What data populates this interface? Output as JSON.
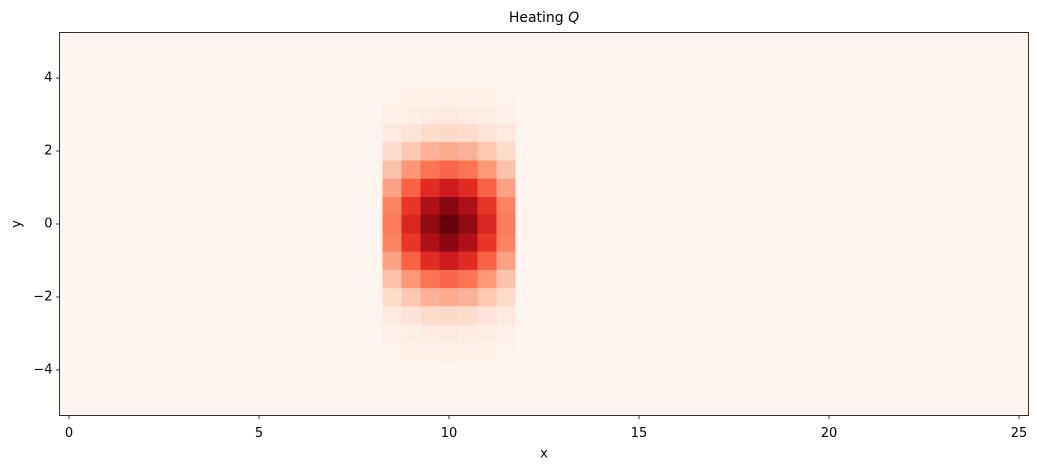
{
  "chart_data": {
    "type": "heatmap",
    "title": "Heating Q",
    "xlabel": "x",
    "ylabel": "y",
    "x": [
      0,
      0.5,
      1,
      1.5,
      2,
      2.5,
      3,
      3.5,
      4,
      4.5,
      5,
      5.5,
      6,
      6.5,
      7,
      7.5,
      8,
      8.5,
      9,
      9.5,
      10,
      10.5,
      11,
      11.5,
      12,
      12.5,
      13,
      13.5,
      14,
      14.5,
      15,
      15.5,
      16,
      16.5,
      17,
      17.5,
      18,
      18.5,
      19,
      19.5,
      20,
      20.5,
      21,
      21.5,
      22,
      22.5,
      23,
      23.5,
      24,
      24.5,
      25
    ],
    "y": [
      -5,
      -4.5,
      -4,
      -3.5,
      -3,
      -2.5,
      -2,
      -1.5,
      -1,
      -0.5,
      0,
      0.5,
      1,
      1.5,
      2,
      2.5,
      3,
      3.5,
      4,
      4.5,
      5
    ],
    "z": [
      [
        0,
        0,
        0,
        0,
        0,
        0,
        0,
        0,
        0,
        0,
        0,
        0,
        0,
        0,
        0,
        0,
        0,
        0,
        0,
        0,
        0,
        0,
        0,
        0,
        0,
        0,
        0,
        0,
        0,
        0,
        0,
        0,
        0,
        0,
        0,
        0,
        0,
        0,
        0,
        0,
        0,
        0,
        0,
        0,
        0,
        0,
        0,
        0,
        0,
        0,
        0
      ],
      [
        0,
        0,
        0,
        0,
        0,
        0,
        0,
        0,
        0,
        0,
        0,
        0,
        0,
        0,
        0,
        0,
        0,
        0,
        0,
        0,
        0,
        0,
        0,
        0,
        0,
        0,
        0,
        0,
        0,
        0,
        0,
        0,
        0,
        0,
        0,
        0,
        0,
        0,
        0,
        0,
        0,
        0,
        0,
        0,
        0,
        0,
        0,
        0,
        0,
        0,
        0
      ],
      [
        0,
        0,
        0,
        0,
        0,
        0,
        0,
        0,
        0,
        0,
        0,
        0,
        0,
        0,
        0,
        0,
        0,
        0,
        0,
        0,
        0,
        0,
        0,
        0,
        0,
        0,
        0,
        0,
        0,
        0,
        0,
        0,
        0,
        0,
        0,
        0,
        0,
        0,
        0,
        0,
        0,
        0,
        0,
        0,
        0,
        0,
        0,
        0,
        0,
        0,
        0
      ],
      [
        0,
        0,
        0,
        0,
        0,
        0,
        0,
        0,
        0,
        0,
        0,
        0,
        0,
        0,
        0,
        0,
        0,
        0.01,
        0.02,
        0.02,
        0.03,
        0.02,
        0.02,
        0.01,
        0,
        0,
        0,
        0,
        0,
        0,
        0,
        0,
        0,
        0,
        0,
        0,
        0,
        0,
        0,
        0,
        0,
        0,
        0,
        0,
        0,
        0,
        0,
        0,
        0,
        0,
        0
      ],
      [
        0,
        0,
        0,
        0,
        0,
        0,
        0,
        0,
        0,
        0,
        0,
        0,
        0,
        0,
        0,
        0,
        0,
        0.03,
        0.05,
        0.06,
        0.07,
        0.06,
        0.05,
        0.03,
        0,
        0,
        0,
        0,
        0,
        0,
        0,
        0,
        0,
        0,
        0,
        0,
        0,
        0,
        0,
        0,
        0,
        0,
        0,
        0,
        0,
        0,
        0,
        0,
        0,
        0,
        0
      ],
      [
        0,
        0,
        0,
        0,
        0,
        0,
        0,
        0,
        0,
        0,
        0,
        0,
        0,
        0,
        0,
        0,
        0,
        0.07,
        0.11,
        0.14,
        0.15,
        0.14,
        0.11,
        0.07,
        0,
        0,
        0,
        0,
        0,
        0,
        0,
        0,
        0,
        0,
        0,
        0,
        0,
        0,
        0,
        0,
        0,
        0,
        0,
        0,
        0,
        0,
        0,
        0,
        0,
        0,
        0
      ],
      [
        0,
        0,
        0,
        0,
        0,
        0,
        0,
        0,
        0,
        0,
        0,
        0,
        0,
        0,
        0,
        0,
        0,
        0.14,
        0.21,
        0.28,
        0.3,
        0.28,
        0.21,
        0.14,
        0,
        0,
        0,
        0,
        0,
        0,
        0,
        0,
        0,
        0,
        0,
        0,
        0,
        0,
        0,
        0,
        0,
        0,
        0,
        0,
        0,
        0,
        0,
        0,
        0,
        0,
        0
      ],
      [
        0,
        0,
        0,
        0,
        0,
        0,
        0,
        0,
        0,
        0,
        0,
        0,
        0,
        0,
        0,
        0,
        0,
        0.23,
        0.36,
        0.47,
        0.51,
        0.47,
        0.36,
        0.23,
        0,
        0,
        0,
        0,
        0,
        0,
        0,
        0,
        0,
        0,
        0,
        0,
        0,
        0,
        0,
        0,
        0,
        0,
        0,
        0,
        0,
        0,
        0,
        0,
        0,
        0,
        0
      ],
      [
        0,
        0,
        0,
        0,
        0,
        0,
        0,
        0,
        0,
        0,
        0,
        0,
        0,
        0,
        0,
        0,
        0,
        0.33,
        0.52,
        0.68,
        0.74,
        0.68,
        0.52,
        0.33,
        0,
        0,
        0,
        0,
        0,
        0,
        0,
        0,
        0,
        0,
        0,
        0,
        0,
        0,
        0,
        0,
        0,
        0,
        0,
        0,
        0,
        0,
        0,
        0,
        0,
        0,
        0
      ],
      [
        0,
        0,
        0,
        0,
        0,
        0,
        0,
        0,
        0,
        0,
        0,
        0,
        0,
        0,
        0,
        0,
        0,
        0.42,
        0.65,
        0.85,
        0.93,
        0.85,
        0.65,
        0.42,
        0,
        0,
        0,
        0,
        0,
        0,
        0,
        0,
        0,
        0,
        0,
        0,
        0,
        0,
        0,
        0,
        0,
        0,
        0,
        0,
        0,
        0,
        0,
        0,
        0,
        0,
        0
      ],
      [
        0,
        0,
        0,
        0,
        0,
        0,
        0,
        0,
        0,
        0,
        0,
        0,
        0,
        0,
        0,
        0,
        0,
        0.45,
        0.7,
        0.92,
        1,
        0.92,
        0.7,
        0.45,
        0,
        0,
        0,
        0,
        0,
        0,
        0,
        0,
        0,
        0,
        0,
        0,
        0,
        0,
        0,
        0,
        0,
        0,
        0,
        0,
        0,
        0,
        0,
        0,
        0,
        0,
        0
      ],
      [
        0,
        0,
        0,
        0,
        0,
        0,
        0,
        0,
        0,
        0,
        0,
        0,
        0,
        0,
        0,
        0,
        0,
        0.42,
        0.65,
        0.85,
        0.93,
        0.85,
        0.65,
        0.42,
        0,
        0,
        0,
        0,
        0,
        0,
        0,
        0,
        0,
        0,
        0,
        0,
        0,
        0,
        0,
        0,
        0,
        0,
        0,
        0,
        0,
        0,
        0,
        0,
        0,
        0,
        0
      ],
      [
        0,
        0,
        0,
        0,
        0,
        0,
        0,
        0,
        0,
        0,
        0,
        0,
        0,
        0,
        0,
        0,
        0,
        0.33,
        0.52,
        0.68,
        0.74,
        0.68,
        0.52,
        0.33,
        0,
        0,
        0,
        0,
        0,
        0,
        0,
        0,
        0,
        0,
        0,
        0,
        0,
        0,
        0,
        0,
        0,
        0,
        0,
        0,
        0,
        0,
        0,
        0,
        0,
        0,
        0
      ],
      [
        0,
        0,
        0,
        0,
        0,
        0,
        0,
        0,
        0,
        0,
        0,
        0,
        0,
        0,
        0,
        0,
        0,
        0.23,
        0.36,
        0.47,
        0.51,
        0.47,
        0.36,
        0.23,
        0,
        0,
        0,
        0,
        0,
        0,
        0,
        0,
        0,
        0,
        0,
        0,
        0,
        0,
        0,
        0,
        0,
        0,
        0,
        0,
        0,
        0,
        0,
        0,
        0,
        0,
        0
      ],
      [
        0,
        0,
        0,
        0,
        0,
        0,
        0,
        0,
        0,
        0,
        0,
        0,
        0,
        0,
        0,
        0,
        0,
        0.14,
        0.21,
        0.28,
        0.3,
        0.28,
        0.21,
        0.14,
        0,
        0,
        0,
        0,
        0,
        0,
        0,
        0,
        0,
        0,
        0,
        0,
        0,
        0,
        0,
        0,
        0,
        0,
        0,
        0,
        0,
        0,
        0,
        0,
        0,
        0,
        0
      ],
      [
        0,
        0,
        0,
        0,
        0,
        0,
        0,
        0,
        0,
        0,
        0,
        0,
        0,
        0,
        0,
        0,
        0,
        0.07,
        0.11,
        0.14,
        0.15,
        0.14,
        0.11,
        0.07,
        0,
        0,
        0,
        0,
        0,
        0,
        0,
        0,
        0,
        0,
        0,
        0,
        0,
        0,
        0,
        0,
        0,
        0,
        0,
        0,
        0,
        0,
        0,
        0,
        0,
        0,
        0
      ],
      [
        0,
        0,
        0,
        0,
        0,
        0,
        0,
        0,
        0,
        0,
        0,
        0,
        0,
        0,
        0,
        0,
        0,
        0.03,
        0.05,
        0.06,
        0.07,
        0.06,
        0.05,
        0.03,
        0,
        0,
        0,
        0,
        0,
        0,
        0,
        0,
        0,
        0,
        0,
        0,
        0,
        0,
        0,
        0,
        0,
        0,
        0,
        0,
        0,
        0,
        0,
        0,
        0,
        0,
        0
      ],
      [
        0,
        0,
        0,
        0,
        0,
        0,
        0,
        0,
        0,
        0,
        0,
        0,
        0,
        0,
        0,
        0,
        0,
        0.01,
        0.02,
        0.02,
        0.03,
        0.02,
        0.02,
        0.01,
        0,
        0,
        0,
        0,
        0,
        0,
        0,
        0,
        0,
        0,
        0,
        0,
        0,
        0,
        0,
        0,
        0,
        0,
        0,
        0,
        0,
        0,
        0,
        0,
        0,
        0,
        0
      ],
      [
        0,
        0,
        0,
        0,
        0,
        0,
        0,
        0,
        0,
        0,
        0,
        0,
        0,
        0,
        0,
        0,
        0,
        0,
        0,
        0,
        0,
        0,
        0,
        0,
        0,
        0,
        0,
        0,
        0,
        0,
        0,
        0,
        0,
        0,
        0,
        0,
        0,
        0,
        0,
        0,
        0,
        0,
        0,
        0,
        0,
        0,
        0,
        0,
        0,
        0,
        0
      ],
      [
        0,
        0,
        0,
        0,
        0,
        0,
        0,
        0,
        0,
        0,
        0,
        0,
        0,
        0,
        0,
        0,
        0,
        0,
        0,
        0,
        0,
        0,
        0,
        0,
        0,
        0,
        0,
        0,
        0,
        0,
        0,
        0,
        0,
        0,
        0,
        0,
        0,
        0,
        0,
        0,
        0,
        0,
        0,
        0,
        0,
        0,
        0,
        0,
        0,
        0,
        0
      ],
      [
        0,
        0,
        0,
        0,
        0,
        0,
        0,
        0,
        0,
        0,
        0,
        0,
        0,
        0,
        0,
        0,
        0,
        0,
        0,
        0,
        0,
        0,
        0,
        0,
        0,
        0,
        0,
        0,
        0,
        0,
        0,
        0,
        0,
        0,
        0,
        0,
        0,
        0,
        0,
        0,
        0,
        0,
        0,
        0,
        0,
        0,
        0,
        0,
        0,
        0,
        0
      ]
    ],
    "colormap": [
      "#fff5f0",
      "#fee0d2",
      "#fcbba1",
      "#fc9272",
      "#fb6a4a",
      "#ef3b2c",
      "#cb181d",
      "#a50f15",
      "#67000d"
    ],
    "xlim": [
      -0.25,
      25.25
    ],
    "ylim": [
      -5.25,
      5.25
    ],
    "xticks": [
      0,
      5,
      10,
      15,
      20,
      25
    ],
    "yticks": [
      {
        "value": -4,
        "label": "−4"
      },
      {
        "value": -2,
        "label": "−2"
      },
      0,
      2,
      4
    ]
  }
}
